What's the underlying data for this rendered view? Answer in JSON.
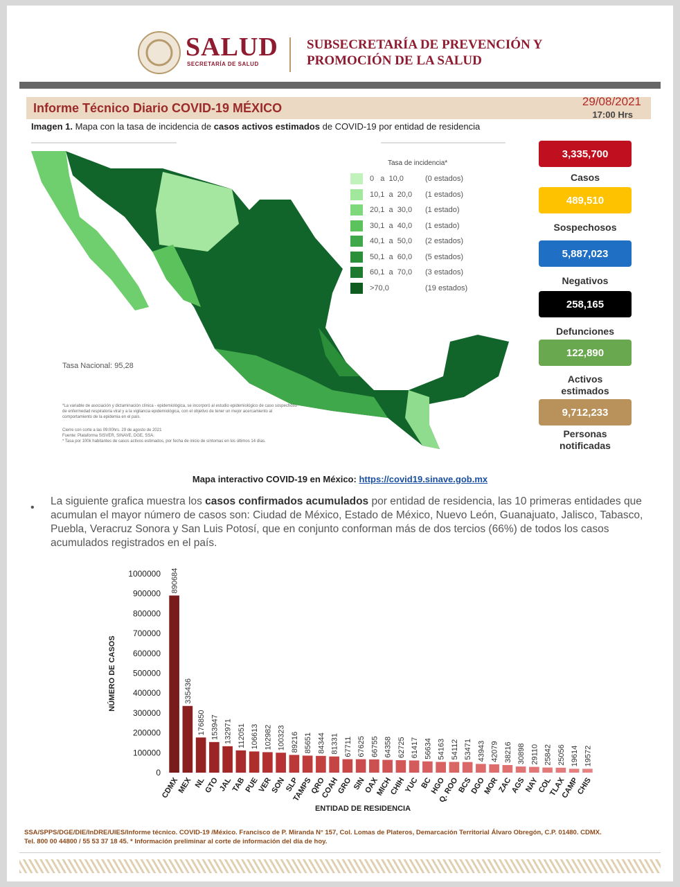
{
  "header": {
    "brand": "SALUD",
    "brand_sub": "SECRETARÍA DE SALUD",
    "sub_line1": "SUBSECRETARÍA DE PREVENCIÓN Y",
    "sub_line2": "PROMOCIÓN DE LA SALUD"
  },
  "report": {
    "title": "Informe Técnico Diario COVID-19 MÉXICO",
    "date": "29/08/2021",
    "time": "17:00 Hrs"
  },
  "caption": {
    "lead": "Imagen 1.",
    "text1": " Mapa con la tasa de incidencia de ",
    "bold": "casos activos estimados",
    "text2": " de COVID-19 por entidad de residencia"
  },
  "map": {
    "legend_title": "Tasa de incidencia*",
    "legend": [
      {
        "range": "0   a  10,0",
        "count": "(0 estados)",
        "color": "#c2f2bb"
      },
      {
        "range": "10,1  a  20,0",
        "count": "(1 estados)",
        "color": "#a2e89c"
      },
      {
        "range": "20,1  a  30,0",
        "count": "(1 estado)",
        "color": "#7fd87b"
      },
      {
        "range": "30,1  a  40,0",
        "count": "(1 estado)",
        "color": "#5cc25c"
      },
      {
        "range": "40,1  a  50,0",
        "count": "(2 estados)",
        "color": "#3fa84a"
      },
      {
        "range": "50,1  a  60,0",
        "count": "(5 estados)",
        "color": "#2b8f3a"
      },
      {
        "range": "60,1  a  70,0",
        "count": "(3 estados)",
        "color": "#1d7a2e"
      },
      {
        "range": ">70,0",
        "count": "(19 estados)",
        "color": "#0f5c20"
      }
    ],
    "national_rate": "Tasa Nacional: 95,28",
    "note": "*La variable de asociación y dictaminación clínica - epidemiológica, se incorporó al estudio epidemiológico de caso sospechoso de enfermedad respiratoria viral y a la vigilancia epidemiológica, con el objetivo de tener un mejor acercamiento al comportamiento de la epidemia en el país.",
    "cutoff": "Cierre con corte a las 09:00hrs. 29 de agosto de 2021",
    "source": "Fuente: Plataforma SISVER, SINAVE, DGE, SSA.",
    "rate_note": "* Tasa por 100k habitantes de casos activos estimados, por fecha de inicio de síntomas en los últimos 14 días."
  },
  "stats": [
    {
      "value": "3,335,700",
      "label": "Casos",
      "color": "#c00f1e",
      "text_color": "#ffffff"
    },
    {
      "value": "489,510",
      "label": "Sospechosos",
      "color": "#ffc200",
      "text_color": "#ffffff"
    },
    {
      "value": "5,887,023",
      "label": "Negativos",
      "color": "#1f6fc5",
      "text_color": "#ffffff"
    },
    {
      "value": "258,165",
      "label": "Defunciones",
      "color": "#000000",
      "text_color": "#ffffff"
    },
    {
      "value": "122,890",
      "label": "Activos estimados",
      "color": "#6aa84f",
      "text_color": "#ffffff"
    },
    {
      "value": "9,712,233",
      "label": "Personas notificadas",
      "color": "#b8925a",
      "text_color": "#ffffff"
    }
  ],
  "link": {
    "label": "Mapa interactivo COVID-19 en México: ",
    "url": "https://covid19.sinave.gob.mx"
  },
  "paragraph": {
    "text1": "La siguiente grafica muestra los ",
    "bold": "casos confirmados acumulados",
    "text2": " por entidad de residencia, las 10 primeras entidades que acumulan el mayor número de casos son: Ciudad de México, Estado de México, Nuevo León, Guanajuato, Jalisco, Tabasco, Puebla, Veracruz Sonora y San Luis Potosí, que en conjunto conforman más de dos tercios (66%) de todos los casos acumulados registrados en el país."
  },
  "chart_data": {
    "type": "bar",
    "y_label": "NÚMERO DE CASOS",
    "x_label": "ENTIDAD DE RESIDENCIA",
    "categories": [
      "CDMX",
      "MEX",
      "NL",
      "GTO",
      "JAL",
      "TAB",
      "PUE",
      "VER",
      "SON",
      "SLP",
      "TAMPS",
      "QRO",
      "COAH",
      "GRO",
      "SIN",
      "OAX",
      "MICH",
      "CHIH",
      "YUC",
      "BC",
      "HGO",
      "Q. ROO",
      "BCS",
      "DGO",
      "MOR",
      "ZAC",
      "AGS",
      "NAY",
      "COL",
      "TLAX",
      "CAMP",
      "CHIS"
    ],
    "values": [
      890684,
      335436,
      176850,
      153947,
      132971,
      112051,
      106613,
      102982,
      100323,
      89216,
      85651,
      84344,
      81331,
      67711,
      67625,
      66755,
      64358,
      62725,
      61417,
      56634,
      54163,
      54112,
      53471,
      43943,
      42079,
      38216,
      30898,
      29110,
      25842,
      25056,
      19614,
      19572
    ],
    "colors": [
      "#7a1b1b",
      "#8a1f1f",
      "#952222",
      "#9c2424",
      "#a32727",
      "#a82a2a",
      "#ae2d2d",
      "#b33030",
      "#b73333",
      "#bb3838",
      "#bf3c3c",
      "#c24040",
      "#c54444",
      "#c84848",
      "#cb4c4c",
      "#cd5050",
      "#d05454",
      "#d25858",
      "#d45b5b",
      "#d65f5f",
      "#d86262",
      "#da6565",
      "#db6868",
      "#dd6b6b",
      "#de6e6e",
      "#df7171",
      "#e07474",
      "#e17777",
      "#e27a7a",
      "#e37d7d",
      "#e48080",
      "#e58383"
    ],
    "ylim": [
      0,
      1000000
    ],
    "yticks": [
      0,
      100000,
      200000,
      300000,
      400000,
      500000,
      600000,
      700000,
      800000,
      900000,
      1000000
    ],
    "grid": false
  },
  "footer": {
    "line1": "SSA/SPPS/DGE/DIE/InDRE/UIES/Informe técnico. COVID-19 /México. Francisco de P. Miranda N° 157, Col. Lomas de Plateros, Demarcación Territorial Álvaro Obregón, C.P. 01480. CDMX.",
    "line2": "Tel. 800 00 44800 / 55 53 37 18 45. * Información preliminar al corte de información del día de hoy."
  }
}
